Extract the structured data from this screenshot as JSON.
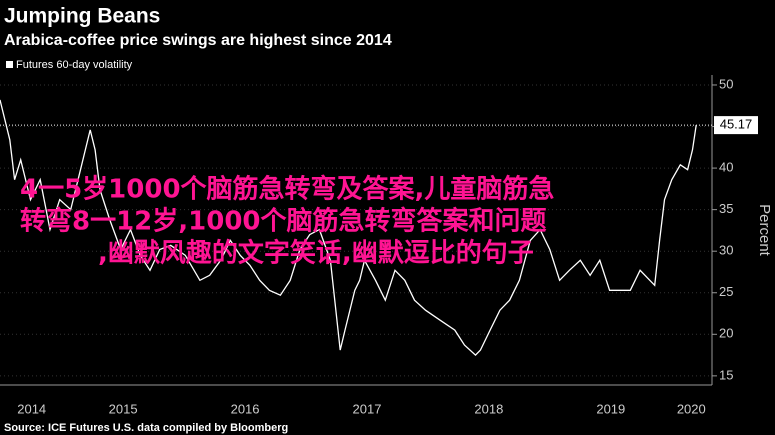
{
  "chart_data": {
    "type": "line",
    "title": "Jumping Beans",
    "subtitle": "Arabica-coffee price swings are highest since 2014",
    "y_axis_label": "Percent",
    "source": "Source: ICE Futures U.S. data compiled by Bloomberg",
    "overlay_text": [
      "4一5岁1000个脑筋急转弯及答案,儿童脑筋急",
      "转弯8一12岁,1000个脑筋急转弯答案和问题",
      ",幽默风趣的文字笑话,幽默逗比的句子"
    ],
    "x": [
      2014.49,
      2014.57,
      2014.61,
      2014.66,
      2014.74,
      2014.82,
      2014.9,
      2014.98,
      2015.07,
      2015.15,
      2015.23,
      2015.27,
      2015.31,
      2015.39,
      2015.48,
      2015.56,
      2015.64,
      2015.72,
      2015.8,
      2015.89,
      2016.01,
      2016.13,
      2016.21,
      2016.3,
      2016.38,
      2016.46,
      2016.54,
      2016.62,
      2016.7,
      2016.79,
      2016.87,
      2016.95,
      2017.03,
      2017.11,
      2017.2,
      2017.28,
      2017.32,
      2017.4,
      2017.44,
      2017.48,
      2017.57,
      2017.65,
      2017.73,
      2017.81,
      2017.89,
      2017.98,
      2018.1,
      2018.22,
      2018.3,
      2018.39,
      2018.43,
      2018.51,
      2018.59,
      2018.67,
      2018.75,
      2018.84,
      2018.92,
      2019.0,
      2019.08,
      2019.16,
      2019.25,
      2019.33,
      2019.41,
      2019.49,
      2019.57,
      2019.66,
      2019.74,
      2019.82,
      2019.86,
      2019.9,
      2019.94,
      2020.0,
      2020.07,
      2020.13,
      2020.17,
      2020.2
    ],
    "series": [
      {
        "name": "Futures 60-day volatility",
        "color": "#ffffff",
        "values": [
          48.2,
          43.4,
          38.6,
          41,
          36.2,
          38.6,
          32.6,
          36.2,
          35,
          39.8,
          44.6,
          42.2,
          37.4,
          33.8,
          30.2,
          32.6,
          29.5,
          27.7,
          30.2,
          30.7,
          29.5,
          26.5,
          27.1,
          28.9,
          31.3,
          29.5,
          28.3,
          26.5,
          25.3,
          24.7,
          26.5,
          30.2,
          32,
          32.6,
          28.9,
          18.1,
          20.5,
          25.3,
          26.5,
          28.9,
          26.5,
          24.1,
          27.7,
          26.5,
          24.1,
          22.9,
          21.7,
          20.5,
          18.7,
          17.5,
          18.1,
          20.5,
          22.9,
          24.1,
          26.5,
          31.3,
          32.6,
          30.2,
          26.5,
          27.7,
          28.9,
          27.1,
          28.9,
          25.3,
          25.3,
          25.3,
          27.7,
          26.5,
          25.9,
          31.3,
          36.2,
          38.6,
          40.4,
          39.8,
          42.2,
          45.17
        ]
      }
    ],
    "xlim": [
      2014.49,
      2020.33
    ],
    "xticks": [
      {
        "value": 2014.75,
        "label": "2014"
      },
      {
        "value": 2015.5,
        "label": "2015"
      },
      {
        "value": 2016.5,
        "label": "2016"
      },
      {
        "value": 2017.5,
        "label": "2017"
      },
      {
        "value": 2018.5,
        "label": "2018"
      },
      {
        "value": 2019.5,
        "label": "2019"
      },
      {
        "value": 2020.16,
        "label": "2020"
      }
    ],
    "ylim": [
      13.9,
      51.2
    ],
    "yticks": [
      15,
      20,
      25,
      30,
      35,
      40,
      45,
      50
    ],
    "grid": true
  }
}
